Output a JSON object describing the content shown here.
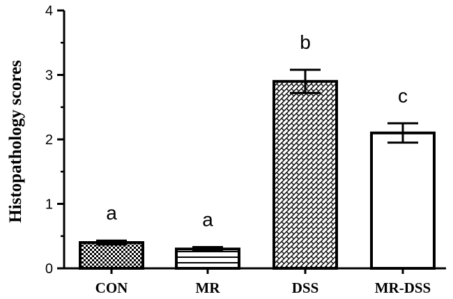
{
  "chart_data": {
    "type": "bar",
    "title": "",
    "xlabel": "",
    "ylabel": "Histopathology scores",
    "ylim": [
      0,
      4
    ],
    "yticks": [
      0,
      1,
      2,
      3,
      4
    ],
    "grid": false,
    "categories": [
      "CON",
      "MR",
      "DSS",
      "MR-DSS"
    ],
    "values": [
      0.4,
      0.3,
      2.9,
      2.1
    ],
    "errors": [
      0.03,
      0.03,
      0.18,
      0.15
    ],
    "significance_labels": [
      "a",
      "a",
      "b",
      "c"
    ],
    "fill_patterns": [
      "checkerboard",
      "horizontal-lines",
      "brick",
      "none"
    ]
  }
}
